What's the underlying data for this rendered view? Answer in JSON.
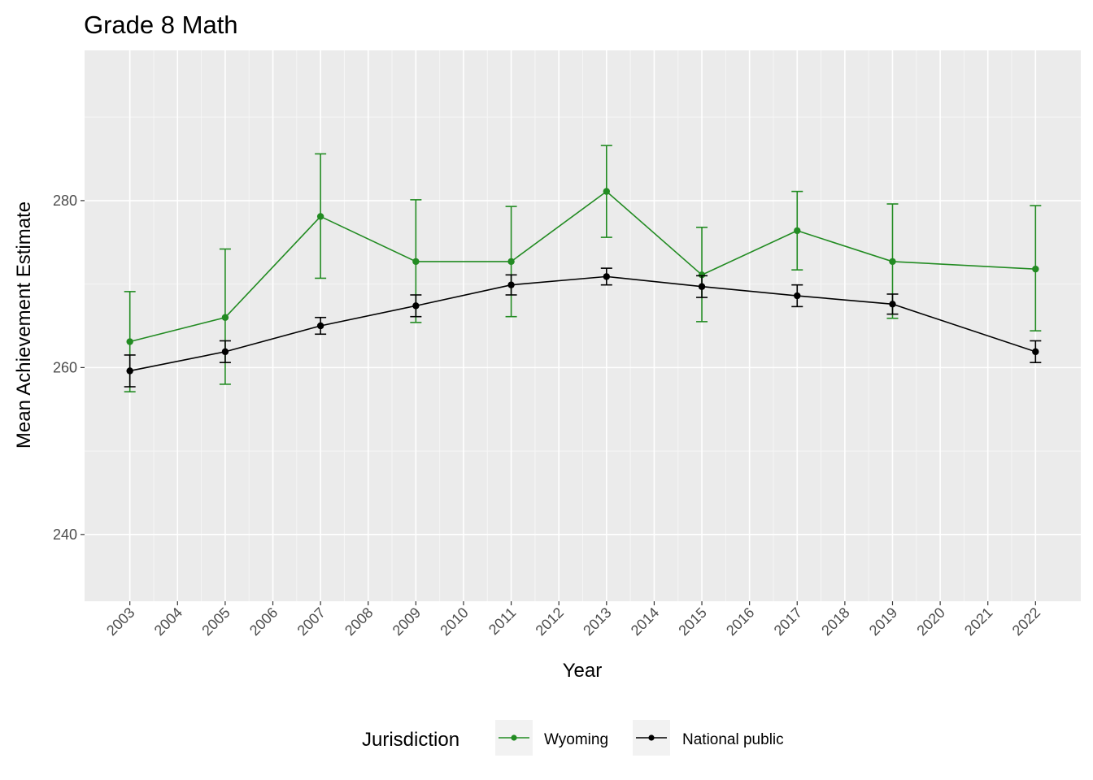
{
  "chart_data": {
    "type": "line",
    "title": "Grade 8 Math",
    "xlabel": "Year",
    "ylabel": "Mean Achievement Estimate",
    "x_ticks": [
      "2003",
      "2004",
      "2005",
      "2006",
      "2007",
      "2008",
      "2009",
      "2010",
      "2011",
      "2012",
      "2013",
      "2014",
      "2015",
      "2016",
      "2017",
      "2018",
      "2019",
      "2020",
      "2021",
      "2022"
    ],
    "y_ticks": [
      "240",
      "260",
      "280"
    ],
    "ylim": [
      232,
      298
    ],
    "xlim": [
      2002.05,
      2022.95
    ],
    "grid": true,
    "legend": {
      "title": "Jurisdiction",
      "position": "bottom",
      "items": [
        "Wyoming",
        "National public"
      ]
    },
    "series": [
      {
        "name": "Wyoming",
        "color": "#228b22",
        "x": [
          2003,
          2005,
          2007,
          2009,
          2011,
          2013,
          2015,
          2017,
          2019,
          2022
        ],
        "y": [
          263.1,
          266.0,
          278.1,
          272.7,
          272.7,
          281.1,
          271.1,
          276.4,
          272.7,
          271.8
        ],
        "lower": [
          257.1,
          258.0,
          270.7,
          265.4,
          266.1,
          275.6,
          265.5,
          271.7,
          265.9,
          264.4
        ],
        "upper": [
          269.1,
          274.2,
          285.6,
          280.1,
          279.3,
          286.6,
          276.8,
          281.1,
          279.6,
          279.4
        ]
      },
      {
        "name": "National public",
        "color": "#000000",
        "x": [
          2003,
          2005,
          2007,
          2009,
          2011,
          2013,
          2015,
          2017,
          2019,
          2022
        ],
        "y": [
          259.6,
          261.9,
          265.0,
          267.4,
          269.9,
          270.9,
          269.7,
          268.6,
          267.6,
          261.9
        ],
        "lower": [
          257.7,
          260.6,
          264.0,
          266.1,
          268.7,
          269.9,
          268.4,
          267.3,
          266.4,
          260.6
        ],
        "upper": [
          261.5,
          263.2,
          266.0,
          268.7,
          271.1,
          271.9,
          271.0,
          269.9,
          268.8,
          263.2
        ]
      }
    ]
  }
}
